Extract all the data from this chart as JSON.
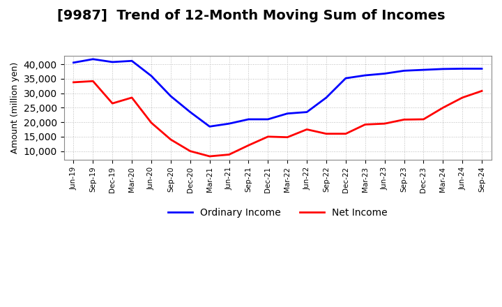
{
  "title": "[9987]  Trend of 12-Month Moving Sum of Incomes",
  "ylabel": "Amount (million yen)",
  "background_color": "#ffffff",
  "plot_background_color": "#ffffff",
  "grid_color": "#aaaaaa",
  "ordinary_income_color": "#0000ff",
  "net_income_color": "#ff0000",
  "x_labels": [
    "Jun-19",
    "Sep-19",
    "Dec-19",
    "Mar-20",
    "Jun-20",
    "Sep-20",
    "Dec-20",
    "Mar-21",
    "Jun-21",
    "Sep-21",
    "Dec-21",
    "Mar-22",
    "Jun-22",
    "Sep-22",
    "Dec-22",
    "Mar-23",
    "Jun-23",
    "Sep-23",
    "Dec-23",
    "Mar-24",
    "Jun-24",
    "Sep-24"
  ],
  "ordinary_income": [
    40600,
    41800,
    40800,
    41200,
    36000,
    29000,
    23500,
    18500,
    19500,
    21000,
    21000,
    23000,
    23500,
    28500,
    35200,
    36200,
    36800,
    37800,
    38100,
    38400,
    38500,
    38500
  ],
  "net_income": [
    33800,
    34200,
    26500,
    28500,
    19800,
    14000,
    10000,
    8200,
    8800,
    12000,
    15000,
    14800,
    17500,
    16000,
    16000,
    19200,
    19500,
    20900,
    21000,
    25000,
    28500,
    30800
  ],
  "ylim_min": 7000,
  "ylim_max": 43000,
  "yticks": [
    10000,
    15000,
    20000,
    25000,
    30000,
    35000,
    40000
  ],
  "title_fontsize": 14,
  "legend_fontsize": 10,
  "line_width": 2.0
}
